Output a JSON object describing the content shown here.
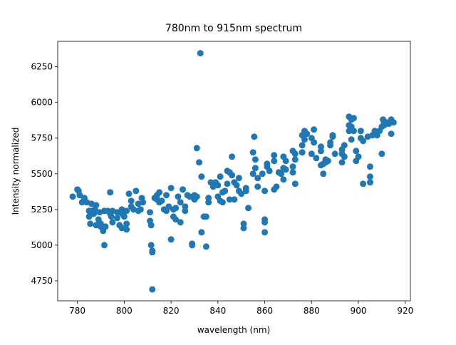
{
  "chart_data": {
    "type": "scatter",
    "title": "780nm to 915nm spectrum",
    "x_label": "wavelength (nm)",
    "y_label": "Intensity normalized",
    "color": "#1f77b4",
    "xlim": [
      771.6,
      922.2
    ],
    "ylim": [
      4610,
      6428
    ],
    "xticks": [
      780,
      800,
      820,
      840,
      860,
      880,
      900,
      920
    ],
    "yticks": [
      4750,
      5000,
      5250,
      5500,
      5750,
      6000,
      6250
    ],
    "x": [
      778,
      780,
      780.5,
      781,
      782,
      783,
      784,
      785,
      785,
      785.5,
      786,
      786,
      787,
      787.5,
      788,
      788,
      789,
      789.5,
      790,
      790,
      791,
      791.5,
      791.5,
      792,
      793,
      794,
      794,
      794.5,
      795,
      795,
      797,
      797,
      798,
      799,
      799,
      799,
      800,
      801,
      801,
      801,
      802,
      803,
      803,
      804,
      805,
      806,
      806,
      807,
      807.5,
      808,
      811,
      811,
      811.5,
      811.5,
      812,
      812,
      812,
      813,
      814,
      814,
      815,
      815,
      816,
      817,
      818,
      818,
      819,
      820,
      820,
      821,
      821,
      822,
      822,
      823,
      824,
      824,
      825,
      826,
      826,
      827,
      828,
      829,
      829,
      830,
      830,
      831,
      831,
      832,
      832.5,
      833,
      833,
      834,
      835,
      835,
      836,
      836,
      837,
      838,
      839,
      840,
      840,
      841,
      841,
      842,
      842,
      843,
      844,
      844,
      845,
      845,
      846,
      846,
      847,
      847,
      848,
      849,
      849,
      850,
      851,
      851,
      852,
      852,
      853,
      855,
      855,
      855.5,
      856,
      856,
      857,
      857,
      859,
      860,
      860,
      860,
      860,
      861,
      861,
      862,
      864,
      864,
      864,
      865,
      866,
      867,
      868,
      868,
      868,
      869,
      869,
      872,
      872,
      872,
      873,
      873,
      873,
      876,
      876,
      876,
      877,
      877,
      878,
      880,
      880,
      881,
      881,
      882,
      884,
      884,
      884,
      885,
      885,
      886,
      886,
      887,
      888,
      888,
      889,
      889,
      890,
      893,
      893,
      893,
      894,
      894,
      896,
      896,
      896,
      897,
      897,
      897,
      898,
      898,
      899,
      899,
      900,
      901,
      901,
      902,
      902,
      904,
      905,
      905,
      905,
      906,
      907,
      908,
      909,
      910,
      910,
      910.5,
      911,
      911,
      912,
      913,
      914,
      914,
      915
    ],
    "values": [
      5340,
      5390,
      5380,
      5350,
      5300,
      5330,
      5300,
      5240,
      5200,
      5150,
      5240,
      5290,
      5220,
      5250,
      5280,
      5140,
      5180,
      5230,
      5130,
      5150,
      5100,
      5000,
      5240,
      5130,
      5240,
      5370,
      5220,
      5200,
      5160,
      5240,
      5230,
      5190,
      5140,
      5250,
      5220,
      5120,
      5200,
      5240,
      5150,
      5110,
      5360,
      5310,
      5270,
      5250,
      5380,
      5290,
      5240,
      5250,
      5330,
      5300,
      5230,
      5170,
      5140,
      5000,
      4960,
      4950,
      4690,
      5330,
      5320,
      5350,
      5370,
      5300,
      5310,
      5250,
      5240,
      5350,
      5270,
      5400,
      5040,
      5250,
      5200,
      5180,
      5260,
      5340,
      5300,
      5160,
      5390,
      5240,
      5270,
      5350,
      5340,
      5000,
      5010,
      5320,
      5350,
      5680,
      5340,
      5580,
      6345,
      5480,
      5090,
      5200,
      5200,
      4990,
      5300,
      5330,
      5440,
      5410,
      5440,
      5420,
      5340,
      5480,
      5310,
      5370,
      5300,
      5380,
      5430,
      5520,
      5510,
      5320,
      5490,
      5620,
      5440,
      5320,
      5420,
      5470,
      5380,
      5360,
      5150,
      5120,
      5400,
      5380,
      5260,
      5500,
      5650,
      5760,
      5600,
      5540,
      5410,
      5470,
      5500,
      5380,
      5180,
      5160,
      5090,
      5550,
      5570,
      5520,
      5590,
      5630,
      5390,
      5410,
      5510,
      5500,
      5540,
      5460,
      5620,
      5530,
      5590,
      5550,
      5510,
      5660,
      5640,
      5600,
      5430,
      5700,
      5650,
      5770,
      5800,
      5740,
      5780,
      5640,
      5750,
      5720,
      5810,
      5610,
      5560,
      5660,
      5690,
      5500,
      5570,
      5580,
      5600,
      5590,
      5720,
      5700,
      5770,
      5760,
      5640,
      5640,
      5670,
      5580,
      5620,
      5700,
      5900,
      5840,
      5800,
      5880,
      5830,
      5740,
      5890,
      5800,
      5660,
      5590,
      5620,
      5800,
      5750,
      5730,
      5430,
      5760,
      5480,
      5440,
      5550,
      5770,
      5800,
      5770,
      5800,
      5830,
      5640,
      5880,
      5860,
      5840,
      5860,
      5850,
      5880,
      5780,
      5860
    ]
  }
}
